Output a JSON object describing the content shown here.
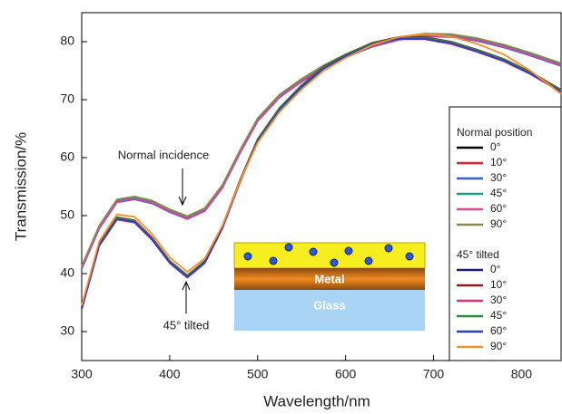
{
  "chart_data": {
    "type": "line",
    "x_label": "Wavelength/nm",
    "y_label": "Transmission/%",
    "xlim": [
      300,
      845
    ],
    "ylim": [
      25,
      85
    ],
    "xticks": [
      300,
      400,
      500,
      600,
      700,
      800
    ],
    "yticks": [
      30,
      40,
      50,
      60,
      70,
      80
    ],
    "x": [
      300,
      320,
      340,
      360,
      380,
      400,
      420,
      440,
      460,
      480,
      500,
      525,
      550,
      575,
      600,
      630,
      660,
      690,
      720,
      750,
      780,
      810,
      845
    ],
    "groups": [
      {
        "title": "Normal position",
        "series": [
          {
            "name": "0°",
            "color": "#000000",
            "values": [
              41,
              48,
              52.5,
              53,
              52.3,
              50.8,
              49.6,
              51,
              55,
              61,
              66.5,
              70.6,
              73.3,
              75.6,
              77.5,
              79.3,
              80.5,
              81.1,
              81,
              80.3,
              79.2,
              77.8,
              76
            ]
          },
          {
            "name": "10°",
            "color": "#e8202a",
            "values": [
              41.2,
              48.2,
              52.7,
              53.2,
              52.5,
              51,
              49.8,
              51.2,
              55.2,
              61.2,
              66.7,
              70.8,
              73.5,
              75.8,
              77.7,
              79.5,
              80.7,
              81.3,
              81.2,
              80.5,
              79.4,
              78,
              76.2
            ]
          },
          {
            "name": "30°",
            "color": "#3a5fcd",
            "values": [
              40.8,
              47.8,
              52.3,
              52.8,
              52.1,
              50.6,
              49.4,
              50.8,
              54.8,
              60.8,
              66.3,
              70.4,
              73.1,
              75.4,
              77.3,
              79.1,
              80.3,
              80.9,
              80.8,
              80.1,
              79,
              77.6,
              75.8
            ]
          },
          {
            "name": "45°",
            "color": "#1a9a8a",
            "values": [
              41.1,
              48.1,
              52.6,
              53.1,
              52.4,
              50.9,
              49.7,
              51.1,
              55.1,
              61.1,
              66.6,
              70.7,
              73.4,
              75.7,
              77.6,
              79.4,
              80.6,
              81.2,
              81.1,
              80.4,
              79.3,
              77.9,
              76.1
            ]
          },
          {
            "name": "60°",
            "color": "#e040a0",
            "values": [
              40.9,
              47.9,
              52.4,
              52.9,
              52.2,
              50.7,
              49.5,
              50.9,
              54.9,
              60.9,
              66.4,
              70.5,
              73.2,
              75.5,
              77.4,
              79.2,
              80.4,
              81,
              80.9,
              80.2,
              79.1,
              77.7,
              75.9
            ]
          },
          {
            "name": "90°",
            "color": "#8a8a50",
            "values": [
              41.3,
              48.3,
              52.8,
              53.3,
              52.6,
              51.1,
              49.9,
              51.3,
              55.3,
              61.3,
              66.8,
              70.9,
              73.6,
              75.9,
              77.8,
              79.6,
              80.8,
              81.4,
              81.3,
              80.6,
              79.5,
              78.1,
              76.3
            ]
          }
        ]
      },
      {
        "title": "45° tilted",
        "series": [
          {
            "name": "0°",
            "color": "#1a1a80",
            "values": [
              34,
              45,
              49.5,
              49,
              46,
              42,
              39.5,
              42,
              48,
              56,
              63,
              68.4,
              72.3,
              75.5,
              77.6,
              79.6,
              80.6,
              80.6,
              79.8,
              78.4,
              76.8,
              74.6,
              71.5
            ]
          },
          {
            "name": "10°",
            "color": "#8b1a1a",
            "values": [
              34.2,
              45.2,
              49.7,
              49.2,
              46.2,
              42.2,
              39.7,
              42.2,
              48.2,
              56.2,
              63.2,
              68.6,
              72.5,
              75.7,
              77.8,
              79.8,
              80.8,
              80.8,
              80,
              78.6,
              77,
              74.8,
              71.7
            ]
          },
          {
            "name": "30°",
            "color": "#e0307a",
            "values": [
              33.8,
              44.8,
              49.3,
              48.8,
              45.8,
              41.8,
              39.3,
              41.8,
              47.8,
              55.8,
              62.8,
              68.2,
              72.1,
              75.3,
              77.4,
              79.4,
              80.4,
              80.4,
              79.6,
              78.2,
              76.6,
              74.4,
              71.3
            ]
          },
          {
            "name": "45°",
            "color": "#2a8a3a",
            "values": [
              34.1,
              45.1,
              49.6,
              49.1,
              46.1,
              42.1,
              39.6,
              42.1,
              48.1,
              56.1,
              63.1,
              68.5,
              72.4,
              75.6,
              77.7,
              79.7,
              80.7,
              80.7,
              79.9,
              78.5,
              76.9,
              74.7,
              71.6
            ]
          },
          {
            "name": "60°",
            "color": "#2a40c0",
            "values": [
              33.9,
              44.9,
              49.4,
              48.9,
              45.9,
              41.9,
              39.4,
              41.9,
              47.9,
              55.9,
              62.9,
              68.3,
              72.2,
              75.4,
              77.5,
              79.5,
              80.5,
              80.5,
              79.7,
              78.3,
              76.7,
              74.5,
              71.4
            ]
          },
          {
            "name": "90°",
            "color": "#f5902a",
            "values": [
              34.5,
              45.6,
              50.2,
              49.8,
              46.8,
              42.8,
              40.3,
              42.6,
              48.3,
              56,
              62.6,
              67.9,
              71.8,
              75,
              77.2,
              79.4,
              80.8,
              81.3,
              80.9,
              79.6,
              77.8,
              75,
              71
            ]
          }
        ]
      }
    ],
    "annotations": [
      "Normal incidence",
      "45° tilted"
    ],
    "inset_layers": [
      "Metal",
      "Glass"
    ]
  }
}
